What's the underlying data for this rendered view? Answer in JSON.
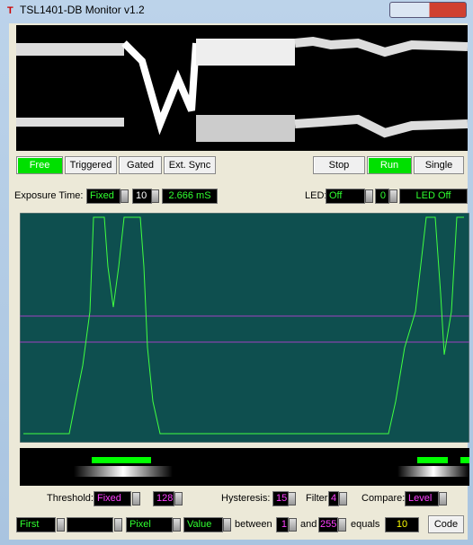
{
  "window": {
    "title": "TSL1401-DB Monitor v1.2"
  },
  "mode_buttons": [
    "Free",
    "Triggered",
    "Gated",
    "Ext. Sync"
  ],
  "run_buttons": [
    "Stop",
    "Run",
    "Single"
  ],
  "exposure": {
    "label": "Exposure Time:",
    "mode": "Fixed",
    "value": 10,
    "time": "2.666 mS"
  },
  "led": {
    "label": "LED:",
    "mode": "Off",
    "value": 0,
    "status": "LED Off"
  },
  "threshold": {
    "label": "Threshold:",
    "mode": "Fixed",
    "value": 128
  },
  "hysteresis": {
    "label": "Hysteresis:",
    "value": 15
  },
  "filter": {
    "label": "Filter:",
    "value": 4
  },
  "compare": {
    "label": "Compare:",
    "mode": "Level"
  },
  "search": {
    "which": "First",
    "unit": "Pixel",
    "field": "Value",
    "between_label": "between",
    "low": 1,
    "and_label": "and",
    "high": 255,
    "equals_label": "equals",
    "result": 10,
    "code_button": "Code"
  }
}
